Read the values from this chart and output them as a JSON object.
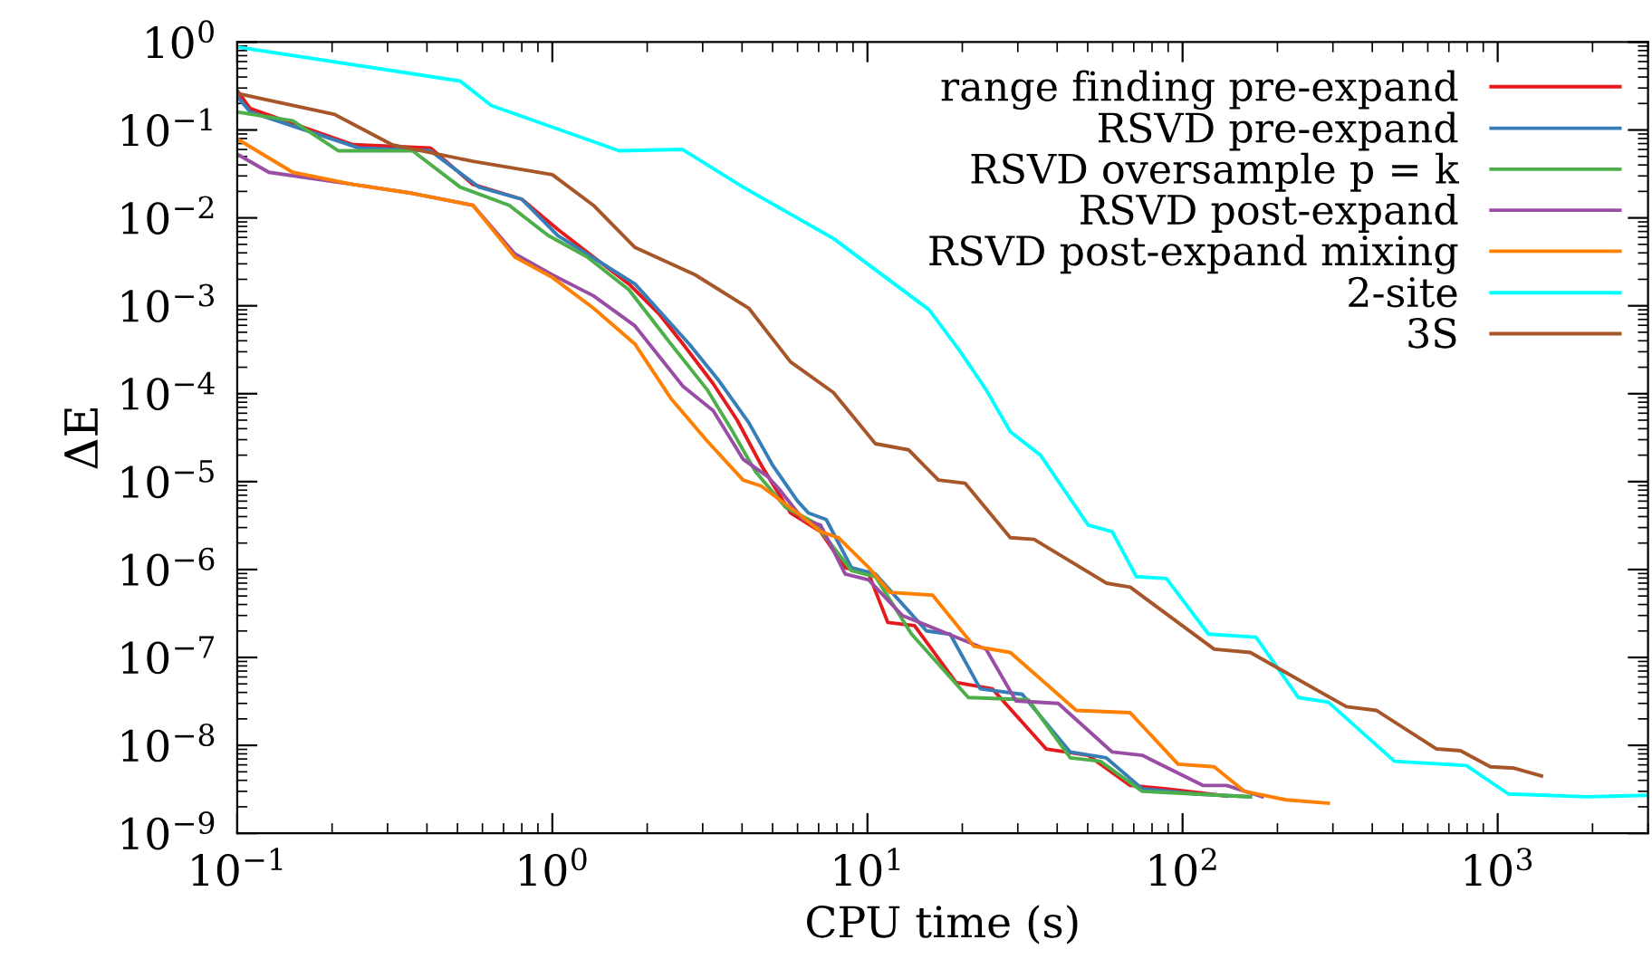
{
  "chart_data": {
    "type": "line",
    "xlabel": "CPU time (s)",
    "ylabel": "ΔE",
    "log": "xy",
    "grid": false,
    "legend": "top right",
    "line_style": "solid",
    "marker": "none",
    "xlim": [
      0.1,
      3000
    ],
    "ylim": [
      1e-09,
      1
    ],
    "xticks": [
      {
        "value": 0.1,
        "label": "10$^{−1}$"
      },
      {
        "value": 1,
        "label": "10$^{0}$"
      },
      {
        "value": 10,
        "label": "10$^{1}$"
      },
      {
        "value": 100,
        "label": "10$^{2}$"
      },
      {
        "value": 1000,
        "label": "10$^{3}$"
      }
    ],
    "yticks": [
      {
        "value": 1e-09,
        "label": "10$^{−9}$"
      },
      {
        "value": 1e-08,
        "label": "10$^{−8}$"
      },
      {
        "value": 1e-07,
        "label": "10$^{−7}$"
      },
      {
        "value": 1e-06,
        "label": "10$^{−6}$"
      },
      {
        "value": 1e-05,
        "label": "10$^{−5}$"
      },
      {
        "value": 0.0001,
        "label": "10$^{−4}$"
      },
      {
        "value": 0.001,
        "label": "10$^{−3}$"
      },
      {
        "value": 0.01,
        "label": "10$^{−2}$"
      },
      {
        "value": 0.1,
        "label": "10$^{−1}$"
      },
      {
        "value": 1,
        "label": "10$^{0}$"
      }
    ],
    "series": [
      {
        "name": "range finding pre-expand",
        "color": "#e41a1c",
        "x": [
          0.1,
          0.11,
          0.233,
          0.41,
          0.56,
          0.8,
          1.04,
          1.35,
          1.75,
          2.18,
          2.6,
          3.24,
          3.86,
          4.6,
          5.7,
          7.1,
          8.5,
          10.1,
          11.6,
          14.1,
          19.1,
          24.9,
          36.9,
          50.2,
          68.2,
          88.9,
          138
        ],
        "values": [
          0.28,
          0.175,
          0.068,
          0.0625,
          0.024,
          0.0163,
          0.0074,
          0.0036,
          0.00177,
          0.00081,
          0.000366,
          0.00013,
          5e-05,
          1.54e-05,
          4.4e-06,
          2.7e-06,
          1.05e-06,
          8.9e-07,
          2.5e-07,
          2.3e-07,
          5.2e-08,
          4.4e-08,
          9.1e-09,
          7.7e-09,
          3.5e-09,
          3.2e-09,
          2.65e-09
        ]
      },
      {
        "name": "RSVD pre-expand",
        "color": "#377eb8",
        "x": [
          0.1,
          0.11,
          0.243,
          0.41,
          0.585,
          0.8,
          1.04,
          1.83,
          2.72,
          3.38,
          4.2,
          5.0,
          6.0,
          6.5,
          7.4,
          8.9,
          10.6,
          15.4,
          18.3,
          22.8,
          31.0,
          44,
          57.3,
          74.5,
          110,
          164
        ],
        "values": [
          0.24,
          0.16,
          0.0625,
          0.058,
          0.0224,
          0.0163,
          0.0063,
          0.00177,
          0.000366,
          0.00014,
          4.7e-05,
          1.54e-05,
          6e-06,
          4.4e-06,
          3.7e-06,
          1.05e-06,
          8.9e-07,
          2e-07,
          1.84e-07,
          4.4e-08,
          3.8e-08,
          8.4e-09,
          7.2e-09,
          3.2e-09,
          2.8e-09,
          2.6e-09
        ]
      },
      {
        "name": "RSVD oversample p = k",
        "color": "#4daf4a",
        "x": [
          0.1,
          0.15,
          0.209,
          0.36,
          0.51,
          0.73,
          0.97,
          1.29,
          1.75,
          2.38,
          3.1,
          3.69,
          4.4,
          5.5,
          6.8,
          8.9,
          10.6,
          13.8,
          20.9,
          32.4,
          44,
          54.8,
          74.5,
          164
        ],
        "values": [
          0.16,
          0.127,
          0.058,
          0.058,
          0.0224,
          0.0139,
          0.0063,
          0.0036,
          0.00152,
          0.000366,
          0.000111,
          4e-05,
          1.32e-05,
          5.1e-06,
          3.4e-06,
          9.7e-07,
          8.3e-07,
          1.84e-07,
          3.5e-08,
          3.3e-08,
          7.2e-09,
          6.6e-09,
          3e-09,
          2.6e-09
        ]
      },
      {
        "name": "RSVD post-expand",
        "color": "#984ea3",
        "x": [
          0.1,
          0.126,
          0.233,
          0.36,
          0.56,
          0.76,
          1.0,
          1.35,
          1.83,
          2.6,
          3.24,
          4.03,
          4.84,
          5.25,
          6.25,
          7.1,
          8.5,
          10.1,
          12.9,
          23.8,
          29.6,
          40.3,
          59.8,
          74.5,
          116,
          138,
          179
        ],
        "values": [
          0.053,
          0.033,
          0.024,
          0.019,
          0.0139,
          0.0039,
          0.00225,
          0.0013,
          0.00059,
          0.000121,
          6.4e-05,
          1.8e-05,
          1.13e-05,
          8.2e-06,
          3.7e-06,
          3.2e-06,
          8.9e-07,
          7.6e-07,
          3e-07,
          1.24e-07,
          3.2e-08,
          3e-08,
          8.4e-09,
          7.7e-09,
          3.5e-09,
          3.5e-09,
          2.6e-09
        ]
      },
      {
        "name": "RSVD post-expand mixing",
        "color": "#ff7f00",
        "x": [
          0.1,
          0.15,
          0.233,
          0.36,
          0.56,
          0.76,
          1.0,
          1.35,
          1.83,
          2.38,
          3.1,
          4.03,
          4.6,
          6.0,
          7.1,
          8.1,
          10.1,
          11.8,
          16.1,
          21.8,
          28.4,
          46,
          68.2,
          96.8,
          126,
          157,
          213,
          290
        ],
        "values": [
          0.079,
          0.033,
          0.024,
          0.019,
          0.0139,
          0.0036,
          0.0021,
          0.00094,
          0.000366,
          8.8e-05,
          2.9e-05,
          1.04e-05,
          8.9e-06,
          4.4e-06,
          2.7e-06,
          2.3e-06,
          1.05e-06,
          5.5e-07,
          5.1e-07,
          1.34e-07,
          1.14e-07,
          2.5e-08,
          2.35e-08,
          6.1e-09,
          5.7e-09,
          3e-09,
          2.4e-09,
          2.2e-09
        ]
      },
      {
        "name": "2-site",
        "color": "#00ffff",
        "x": [
          0.1,
          0.51,
          0.64,
          1.63,
          2.59,
          4.03,
          7.8,
          15.7,
          19.6,
          23.8,
          28.4,
          35.4,
          50.2,
          59.8,
          71.3,
          88.9,
          120.8,
          171,
          233,
          290,
          470,
          796,
          1081,
          1914,
          3000
        ],
        "values": [
          0.88,
          0.36,
          0.19,
          0.058,
          0.06,
          0.0224,
          0.00582,
          0.0009,
          0.00031,
          0.000111,
          3.7e-05,
          2e-05,
          3.2e-06,
          2.7e-06,
          8.3e-07,
          7.9e-07,
          1.84e-07,
          1.7e-07,
          3.5e-08,
          3.1e-08,
          6.6e-09,
          5.9e-09,
          2.8e-09,
          2.6e-09,
          2.7e-09
        ]
      },
      {
        "name": "3S",
        "color": "#a65628",
        "x": [
          0.1,
          0.204,
          0.31,
          0.56,
          1.0,
          1.35,
          1.83,
          2.84,
          4.2,
          5.7,
          7.8,
          10.6,
          13.5,
          16.8,
          20.4,
          28.4,
          33.8,
          57.3,
          68.2,
          126,
          164,
          331,
          412,
          640,
          762,
          948,
          1130,
          1377
        ],
        "values": [
          0.26,
          0.15,
          0.068,
          0.044,
          0.031,
          0.0139,
          0.0046,
          0.00225,
          0.00094,
          0.00023,
          0.000103,
          2.7e-05,
          2.3e-05,
          1.04e-05,
          9.6e-06,
          2.3e-06,
          2.2e-06,
          7e-07,
          6.3e-07,
          1.24e-07,
          1.14e-07,
          2.75e-08,
          2.5e-08,
          9.1e-09,
          8.7e-09,
          5.7e-09,
          5.5e-09,
          4.5e-09
        ]
      }
    ]
  }
}
